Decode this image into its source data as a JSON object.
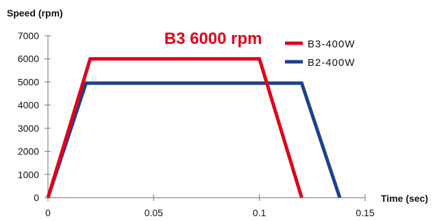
{
  "chart_data": {
    "type": "line",
    "ylabel": "Speed (rpm)",
    "xlabel": "Time (sec)",
    "xlim": [
      0,
      0.15
    ],
    "ylim": [
      0,
      7000
    ],
    "xticks": [
      0,
      0.05,
      0.1,
      0.15
    ],
    "xtick_labels": [
      "0",
      "0.05",
      "0.1",
      "0.15"
    ],
    "yticks": [
      0,
      1000,
      2000,
      3000,
      4000,
      5000,
      6000,
      7000
    ],
    "ytick_labels": [
      "0",
      "1000",
      "2000",
      "3000",
      "4000",
      "5000",
      "6000",
      "7000"
    ],
    "grid": false,
    "legend": "top-right",
    "annotation": {
      "text": "B3 6000 rpm",
      "color": "#e2001a",
      "x": 0.055,
      "y": 6650
    },
    "series": [
      {
        "name": "B3-400W",
        "color": "#e2001a",
        "x": [
          0.0,
          0.02,
          0.1,
          0.12
        ],
        "y": [
          0,
          6000,
          6000,
          0
        ]
      },
      {
        "name": "B2-400W",
        "color": "#1f3f8f",
        "x": [
          0.0,
          0.018,
          0.12,
          0.138
        ],
        "y": [
          0,
          4950,
          4950,
          0
        ]
      }
    ]
  }
}
